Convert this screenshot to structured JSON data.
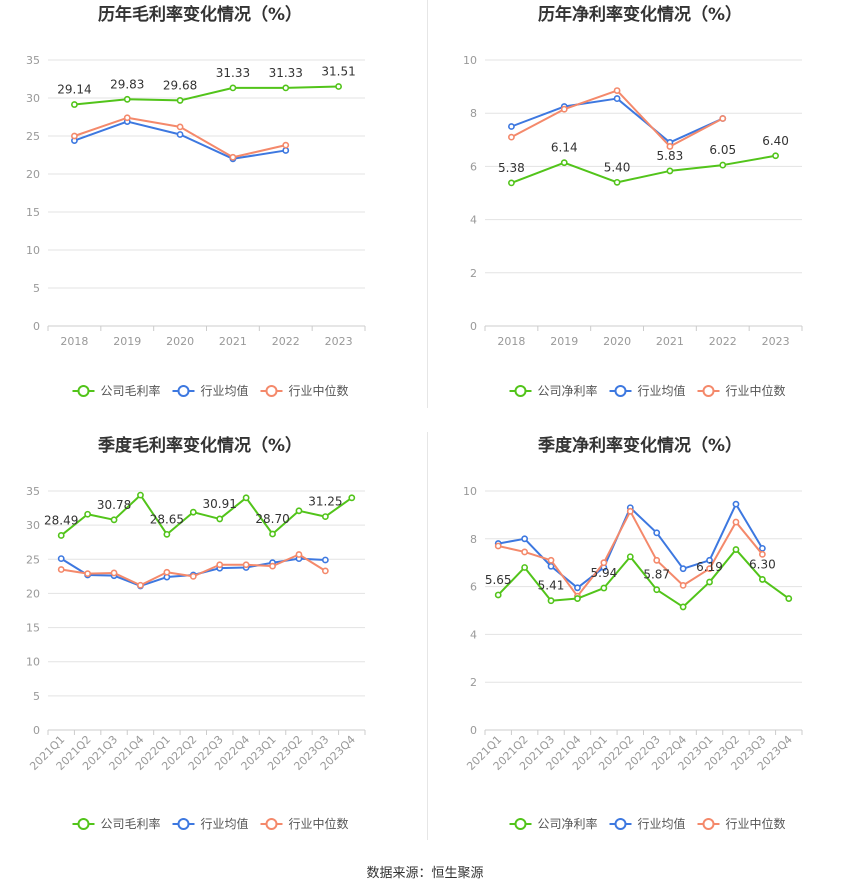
{
  "colors": {
    "company": "#52c41a",
    "industry_avg": "#3d78e0",
    "industry_median": "#f4896b",
    "grid": "#e3e3e3",
    "axis": "#999999",
    "label": "#333333"
  },
  "legend": {
    "gross_company": "公司毛利率",
    "net_company": "公司净利率",
    "avg": "行业均值",
    "median": "行业中位数"
  },
  "source": "数据来源：恒生聚源",
  "chart_data": [
    {
      "id": "annual-gross",
      "type": "line",
      "title": "历年毛利率变化情况（%）",
      "categories": [
        "2018",
        "2019",
        "2020",
        "2021",
        "2022",
        "2023"
      ],
      "yticks": [
        "0",
        "5",
        "10",
        "15",
        "20",
        "25",
        "30",
        "35"
      ],
      "ylim": [
        0,
        35
      ],
      "legend_position": "bottom",
      "series": [
        {
          "name": "公司毛利率",
          "key": "company",
          "values": [
            29.14,
            29.83,
            29.68,
            31.33,
            31.33,
            31.51
          ]
        },
        {
          "name": "行业均值",
          "key": "industry_avg",
          "values": [
            24.4,
            26.9,
            25.2,
            22.0,
            23.1,
            null
          ]
        },
        {
          "name": "行业中位数",
          "key": "industry_median",
          "values": [
            25.0,
            27.4,
            26.2,
            22.2,
            23.8,
            null
          ]
        }
      ],
      "data_labels": [
        "29.14",
        "29.83",
        "29.68",
        "31.33",
        "31.33",
        "31.51"
      ]
    },
    {
      "id": "annual-net",
      "type": "line",
      "title": "历年净利率变化情况（%）",
      "categories": [
        "2018",
        "2019",
        "2020",
        "2021",
        "2022",
        "2023"
      ],
      "yticks": [
        "0",
        "2",
        "4",
        "6",
        "8",
        "10"
      ],
      "ylim": [
        0,
        10
      ],
      "legend_position": "bottom",
      "series": [
        {
          "name": "公司净利率",
          "key": "company",
          "values": [
            5.38,
            6.14,
            5.4,
            5.83,
            6.05,
            6.4
          ]
        },
        {
          "name": "行业均值",
          "key": "industry_avg",
          "values": [
            7.5,
            8.25,
            8.55,
            6.9,
            7.8,
            null
          ]
        },
        {
          "name": "行业中位数",
          "key": "industry_median",
          "values": [
            7.1,
            8.15,
            8.85,
            6.75,
            7.8,
            null
          ]
        }
      ],
      "data_labels": [
        "5.38",
        "6.14",
        "5.40",
        "5.83",
        "6.05",
        "6.40"
      ]
    },
    {
      "id": "quarterly-gross",
      "type": "line",
      "title": "季度毛利率变化情况（%）",
      "categories": [
        "2021Q1",
        "2021Q2",
        "2021Q3",
        "2021Q4",
        "2022Q1",
        "2022Q2",
        "2022Q3",
        "2022Q4",
        "2023Q1",
        "2023Q2",
        "2023Q3",
        "2023Q4"
      ],
      "yticks": [
        "0",
        "5",
        "10",
        "15",
        "20",
        "25",
        "30",
        "35"
      ],
      "ylim": [
        0,
        35
      ],
      "legend_position": "bottom",
      "series": [
        {
          "name": "公司毛利率",
          "key": "company",
          "values": [
            28.49,
            31.6,
            30.78,
            34.4,
            28.65,
            31.9,
            30.91,
            34.0,
            28.7,
            32.1,
            31.25,
            34.0
          ]
        },
        {
          "name": "行业均值",
          "key": "industry_avg",
          "values": [
            25.1,
            22.7,
            22.6,
            21.1,
            22.4,
            22.7,
            23.7,
            23.8,
            24.5,
            25.1,
            24.9,
            null
          ]
        },
        {
          "name": "行业中位数",
          "key": "industry_median",
          "values": [
            23.5,
            22.9,
            23.0,
            21.2,
            23.1,
            22.5,
            24.2,
            24.2,
            24.0,
            25.7,
            23.3,
            null
          ]
        }
      ],
      "data_labels": [
        "28.49",
        "",
        "30.78",
        "",
        "28.65",
        "",
        "30.91",
        "",
        "28.70",
        "",
        "31.25",
        ""
      ]
    },
    {
      "id": "quarterly-net",
      "type": "line",
      "title": "季度净利率变化情况（%）",
      "categories": [
        "2021Q1",
        "2021Q2",
        "2021Q3",
        "2021Q4",
        "2022Q1",
        "2022Q2",
        "2022Q3",
        "2022Q4",
        "2023Q1",
        "2023Q2",
        "2023Q3",
        "2023Q4"
      ],
      "yticks": [
        "0",
        "2",
        "4",
        "6",
        "8",
        "10"
      ],
      "ylim": [
        0,
        10
      ],
      "legend_position": "bottom",
      "series": [
        {
          "name": "公司净利率",
          "key": "company",
          "values": [
            5.65,
            6.8,
            5.41,
            5.5,
            5.94,
            7.25,
            5.87,
            5.15,
            6.19,
            7.55,
            6.3,
            5.5
          ]
        },
        {
          "name": "行业均值",
          "key": "industry_avg",
          "values": [
            7.8,
            8.0,
            6.85,
            5.95,
            6.8,
            9.3,
            8.25,
            6.75,
            7.1,
            9.45,
            7.6,
            null
          ]
        },
        {
          "name": "行业中位数",
          "key": "industry_median",
          "values": [
            7.7,
            7.45,
            7.1,
            5.6,
            7.0,
            9.15,
            7.1,
            6.05,
            6.75,
            8.7,
            7.35,
            null
          ]
        }
      ],
      "data_labels": [
        "5.65",
        "",
        "5.41",
        "",
        "5.94",
        "",
        "5.87",
        "",
        "6.19",
        "",
        "6.30",
        ""
      ]
    }
  ]
}
